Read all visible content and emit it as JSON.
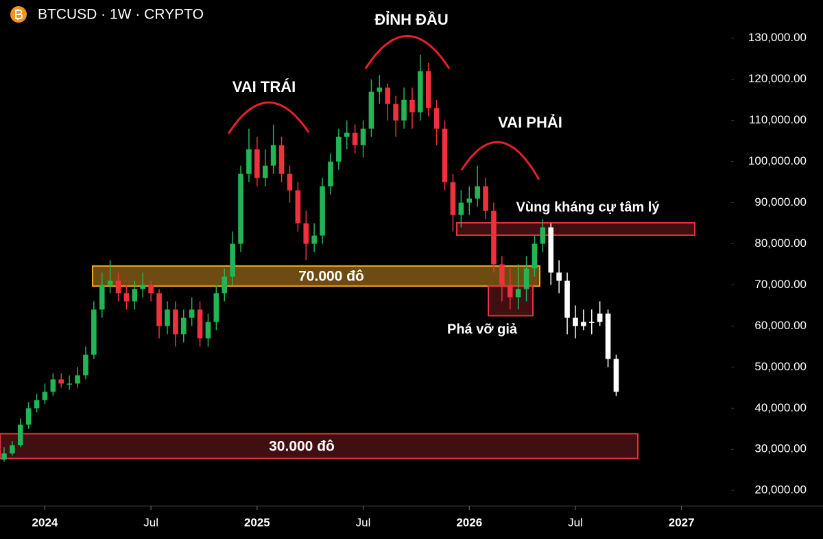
{
  "chart_data": {
    "type": "candlestick",
    "title": "BTCUSD · 1W · CRYPTO",
    "categories": [
      null,
      null,
      null,
      null,
      null,
      "2024",
      null,
      null,
      null,
      null,
      null,
      null,
      null,
      null,
      null,
      null,
      null,
      null,
      "Jul",
      null,
      null,
      null,
      null,
      null,
      null,
      null,
      null,
      null,
      null,
      null,
      null,
      "2025",
      null,
      null,
      null,
      null,
      null,
      null,
      null,
      null,
      null,
      null,
      null,
      null,
      "Jul",
      null,
      null,
      null,
      null,
      null,
      null,
      null,
      null,
      null,
      null,
      null,
      null,
      "2026",
      null,
      null,
      null,
      null,
      null,
      null,
      null,
      null,
      null,
      null,
      null,
      null,
      "Jul",
      null,
      null,
      null,
      null,
      null,
      null,
      null,
      null,
      null,
      null,
      null,
      null,
      "2027"
    ],
    "series": [
      {
        "up_color": "#22b455",
        "down_color": "#f0303c",
        "open": [
          27500,
          29000,
          31000,
          36000,
          40000,
          42000,
          44000,
          47000,
          46000,
          46000,
          48000,
          53000,
          64000,
          70000,
          71000,
          68000,
          66000,
          69000,
          70000,
          68000,
          60000,
          64000,
          58000,
          62000,
          64000,
          57000,
          61000,
          68000,
          72000,
          80000,
          97000,
          103000,
          96000,
          99000,
          104000,
          97000,
          93000,
          85000,
          80000,
          82000,
          94000,
          100000,
          106000,
          107000,
          104000,
          108000,
          117000,
          118000,
          114000,
          110000,
          115000,
          112000,
          122000,
          113000,
          108000,
          95000,
          87000,
          90000,
          91000,
          94000,
          88000,
          75000,
          70000,
          67000,
          69000,
          74000,
          80000,
          null,
          null,
          null,
          null,
          null,
          null,
          null,
          null,
          null,
          null,
          null,
          null,
          null,
          null,
          null,
          null,
          null
        ],
        "high": [
          30500,
          32000,
          37500,
          41500,
          43500,
          46000,
          48500,
          48500,
          48000,
          50000,
          55000,
          66000,
          73000,
          76000,
          73000,
          70000,
          71000,
          73000,
          71000,
          69000,
          66000,
          66000,
          64000,
          67000,
          66000,
          63000,
          70000,
          74000,
          83000,
          99000,
          108000,
          106000,
          103000,
          109000,
          106000,
          99000,
          95000,
          88000,
          85000,
          96000,
          102000,
          108000,
          110000,
          109000,
          110000,
          120000,
          121000,
          119000,
          116000,
          118000,
          118000,
          126000,
          124000,
          115000,
          110000,
          97000,
          93000,
          94000,
          99000,
          96000,
          90000,
          77000,
          74000,
          75000,
          77000,
          82000,
          86000,
          null,
          null,
          null,
          null,
          null,
          null,
          null,
          null,
          null,
          null,
          null,
          null,
          null,
          null,
          null,
          null,
          null
        ],
        "low": [
          27000,
          28500,
          30500,
          35000,
          39000,
          41000,
          43000,
          45000,
          44500,
          45000,
          47000,
          52000,
          62000,
          68000,
          66000,
          64000,
          64000,
          67000,
          66000,
          57000,
          58000,
          55000,
          56000,
          60000,
          55000,
          55000,
          59000,
          66000,
          70000,
          78000,
          95000,
          94000,
          94000,
          97000,
          95000,
          90000,
          83000,
          76000,
          78000,
          80000,
          92000,
          98000,
          103000,
          102000,
          101000,
          106000,
          114000,
          110000,
          106000,
          108000,
          108000,
          110000,
          111000,
          104000,
          93000,
          83000,
          84000,
          87000,
          89000,
          86000,
          73000,
          66000,
          64000,
          64000,
          66000,
          72000,
          78000,
          null,
          null,
          null,
          null,
          null,
          null,
          null,
          null,
          null,
          null,
          null,
          null,
          null,
          null,
          null,
          null,
          null
        ],
        "close": [
          29000,
          31000,
          36000,
          40000,
          42000,
          44000,
          47000,
          46000,
          46000,
          48000,
          53000,
          64000,
          70000,
          71000,
          68000,
          66000,
          69000,
          70000,
          68000,
          60000,
          64000,
          58000,
          62000,
          64000,
          57000,
          61000,
          68000,
          72000,
          80000,
          97000,
          103000,
          96000,
          99000,
          104000,
          97000,
          93000,
          85000,
          80000,
          82000,
          94000,
          100000,
          106000,
          107000,
          104000,
          108000,
          117000,
          118000,
          114000,
          110000,
          115000,
          112000,
          122000,
          113000,
          108000,
          95000,
          87000,
          90000,
          91000,
          94000,
          88000,
          75000,
          70000,
          67000,
          69000,
          74000,
          80000,
          84000,
          null,
          null,
          null,
          null,
          null,
          null,
          null,
          null,
          null,
          null,
          null,
          null,
          null,
          null,
          null,
          null,
          null
        ]
      },
      {
        "color": "#ffffff",
        "open": [
          null,
          null,
          null,
          null,
          null,
          null,
          null,
          null,
          null,
          null,
          null,
          null,
          null,
          null,
          null,
          null,
          null,
          null,
          null,
          null,
          null,
          null,
          null,
          null,
          null,
          null,
          null,
          null,
          null,
          null,
          null,
          null,
          null,
          null,
          null,
          null,
          null,
          null,
          null,
          null,
          null,
          null,
          null,
          null,
          null,
          null,
          null,
          null,
          null,
          null,
          null,
          null,
          null,
          null,
          null,
          null,
          null,
          null,
          null,
          null,
          null,
          null,
          null,
          null,
          null,
          null,
          null,
          84000,
          73000,
          71000,
          62000,
          60000,
          61000,
          61000,
          63000,
          52000,
          null,
          null,
          null,
          null,
          null,
          null,
          null,
          null
        ],
        "high": [
          null,
          null,
          null,
          null,
          null,
          null,
          null,
          null,
          null,
          null,
          null,
          null,
          null,
          null,
          null,
          null,
          null,
          null,
          null,
          null,
          null,
          null,
          null,
          null,
          null,
          null,
          null,
          null,
          null,
          null,
          null,
          null,
          null,
          null,
          null,
          null,
          null,
          null,
          null,
          null,
          null,
          null,
          null,
          null,
          null,
          null,
          null,
          null,
          null,
          null,
          null,
          null,
          null,
          null,
          null,
          null,
          null,
          null,
          null,
          null,
          null,
          null,
          null,
          null,
          null,
          null,
          null,
          85000,
          76000,
          73000,
          65000,
          64000,
          64000,
          66000,
          64000,
          53000,
          null,
          null,
          null,
          null,
          null,
          null,
          null,
          null
        ],
        "low": [
          null,
          null,
          null,
          null,
          null,
          null,
          null,
          null,
          null,
          null,
          null,
          null,
          null,
          null,
          null,
          null,
          null,
          null,
          null,
          null,
          null,
          null,
          null,
          null,
          null,
          null,
          null,
          null,
          null,
          null,
          null,
          null,
          null,
          null,
          null,
          null,
          null,
          null,
          null,
          null,
          null,
          null,
          null,
          null,
          null,
          null,
          null,
          null,
          null,
          null,
          null,
          null,
          null,
          null,
          null,
          null,
          null,
          null,
          null,
          null,
          null,
          null,
          null,
          null,
          null,
          null,
          null,
          70000,
          68000,
          58000,
          57000,
          59000,
          58000,
          60000,
          50000,
          43000,
          null,
          null,
          null,
          null,
          null,
          null,
          null,
          null
        ],
        "close": [
          null,
          null,
          null,
          null,
          null,
          null,
          null,
          null,
          null,
          null,
          null,
          null,
          null,
          null,
          null,
          null,
          null,
          null,
          null,
          null,
          null,
          null,
          null,
          null,
          null,
          null,
          null,
          null,
          null,
          null,
          null,
          null,
          null,
          null,
          null,
          null,
          null,
          null,
          null,
          null,
          null,
          null,
          null,
          null,
          null,
          null,
          null,
          null,
          null,
          null,
          null,
          null,
          null,
          null,
          null,
          null,
          null,
          null,
          null,
          null,
          null,
          null,
          null,
          null,
          null,
          null,
          null,
          73000,
          71000,
          62000,
          60000,
          61000,
          61000,
          63000,
          52000,
          44000,
          null,
          null,
          null,
          null,
          null,
          null,
          null,
          null
        ]
      }
    ],
    "ylim": [
      16700,
      139300
    ],
    "yticks": [
      {
        "value": 20000,
        "label": "20,000.00"
      },
      {
        "value": 30000,
        "label": "30,000.00"
      },
      {
        "value": 40000,
        "label": "40,000.00"
      },
      {
        "value": 50000,
        "label": "50,000.00"
      },
      {
        "value": 60000,
        "label": "60,000.00"
      },
      {
        "value": 70000,
        "label": "70,000.00"
      },
      {
        "value": 80000,
        "label": "80,000.00"
      },
      {
        "value": 90000,
        "label": "90,000.00"
      },
      {
        "value": 100000,
        "label": "100,000.00"
      },
      {
        "value": 110000,
        "label": "110,000.00"
      },
      {
        "value": 120000,
        "label": "120,000.00"
      },
      {
        "value": 130000,
        "label": "130,000.00"
      }
    ],
    "zones": [
      {
        "low": 69700,
        "high": 74600,
        "label": "70.000 đô",
        "color": "#f5a623"
      },
      {
        "low": 27800,
        "high": 33800,
        "label": "30.000 đô",
        "color": "#e8323c"
      },
      {
        "low": 82100,
        "high": 85100,
        "color": "#e8323c"
      },
      {
        "low": 62500,
        "high": 69700,
        "color": "#e8323c"
      }
    ],
    "annotations": [
      "VAI TRÁI",
      "ĐỈNH ĐẦU",
      "VAI PHẢI",
      "Vùng kháng cự tâm lý",
      "Phá vỡ giả"
    ]
  }
}
